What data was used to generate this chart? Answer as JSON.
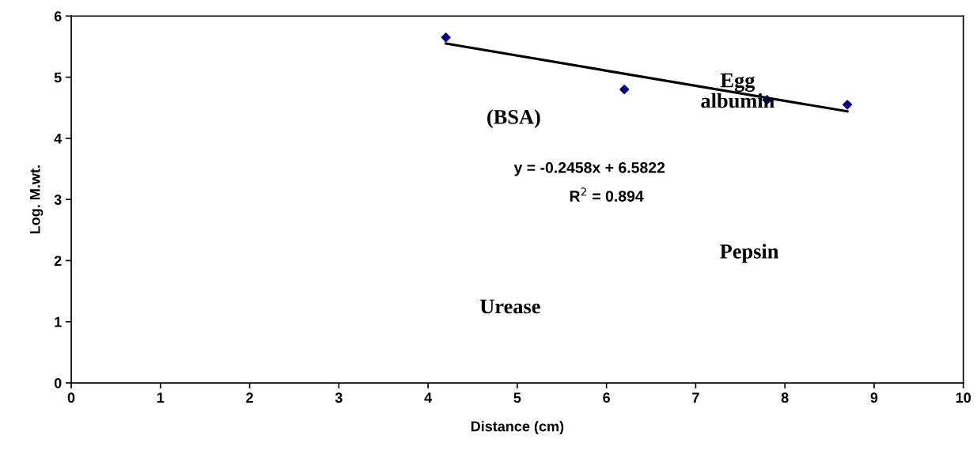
{
  "chart_data": {
    "type": "scatter",
    "xlabel": "Distance (cm)",
    "ylabel": "Log. M.wt.",
    "series": [
      {
        "color": "#000080",
        "x": [
          4.2,
          6.2,
          7.8,
          8.7
        ],
        "values": [
          5.65,
          4.8,
          4.63,
          4.55
        ],
        "marker": "diamond"
      },
      {
        "type": "line",
        "color": "#000000",
        "x": [
          4.2,
          8.7
        ],
        "values": [
          5.55,
          4.44
        ],
        "marker": "none",
        "line_style": "solid"
      }
    ],
    "annotations": [
      "Egg\nalbumin",
      "(BSA)",
      "y = -0.2458x + 6.5822",
      "R$^{2}$ = 0.894",
      "Pepsin",
      "Urease"
    ],
    "xlim": [
      0,
      10
    ],
    "xticks": [
      0,
      1,
      2,
      3,
      4,
      5,
      6,
      7,
      8,
      9,
      10
    ],
    "ylim": [
      0,
      6
    ],
    "yticks": [
      0,
      1,
      2,
      3,
      4,
      5,
      6
    ],
    "grid": false,
    "legend": false
  }
}
